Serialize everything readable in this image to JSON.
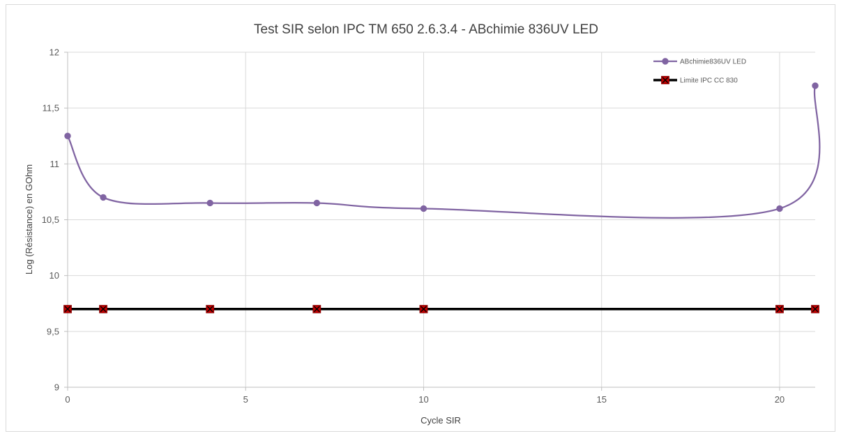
{
  "chart_data": {
    "type": "line",
    "title": "Test SIR selon IPC TM 650 2.6.3.4  - ABchimie 836UV LED",
    "xlabel": "Cycle SIR",
    "ylabel": "Log (Résistance) en GOhm",
    "xlim": [
      0,
      21
    ],
    "ylim": [
      9,
      12
    ],
    "x_ticks": [
      0,
      5,
      10,
      15,
      20
    ],
    "x_tick_labels": [
      "0",
      "5",
      "10",
      "15",
      "20"
    ],
    "y_ticks": [
      9,
      9.5,
      10,
      10.5,
      11,
      11.5,
      12
    ],
    "y_tick_labels": [
      "9",
      "9,5",
      "10",
      "10,5",
      "11",
      "11,5",
      "12"
    ],
    "grid": true,
    "legend_position": "top-right",
    "series": [
      {
        "name": "ABchimie836UV LED",
        "color": "#8064a2",
        "marker": "circle",
        "smooth": true,
        "x": [
          0,
          1,
          4,
          7,
          10,
          20,
          21
        ],
        "y": [
          11.25,
          10.7,
          10.65,
          10.65,
          10.6,
          10.6,
          11.7
        ]
      },
      {
        "name": "Limite IPC CC 830",
        "color": "#000000",
        "marker": "x-square",
        "marker_color": "#c00000",
        "smooth": false,
        "x": [
          0,
          1,
          4,
          7,
          10,
          20,
          21
        ],
        "y": [
          9.7,
          9.7,
          9.7,
          9.7,
          9.7,
          9.7,
          9.7
        ]
      }
    ]
  }
}
